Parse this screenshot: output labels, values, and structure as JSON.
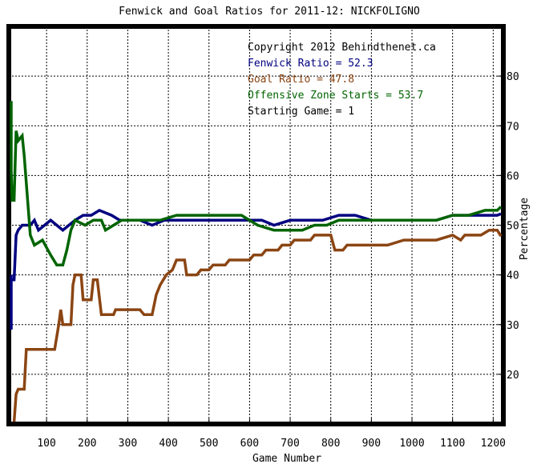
{
  "chart_data": {
    "type": "line",
    "title": "Fenwick and Goal Ratios for 2011-12: NICKFOLIGNO",
    "xlabel": "Game Number",
    "ylabel": "Percentage",
    "xlim": [
      1,
      1225
    ],
    "ylim": [
      10,
      90
    ],
    "x_ticks": [
      100,
      200,
      300,
      400,
      500,
      600,
      700,
      800,
      900,
      1000,
      1100,
      1200
    ],
    "y_ticks": [
      20,
      30,
      40,
      50,
      60,
      70,
      80
    ],
    "y_axis_side": "right",
    "grid": true,
    "grid_style": "dashed",
    "annotations": [
      {
        "text": "Copyright 2012 Behindthenet.ca",
        "color": "#000000"
      },
      {
        "text": "Fenwick Ratio = 52.3",
        "color": "#000080"
      },
      {
        "text": "Goal Ratio = 47.8",
        "color": "#8B4513"
      },
      {
        "text": "Offensive Zone Starts = 53.7",
        "color": "#006400"
      },
      {
        "text": "Starting Game = 1",
        "color": "#000000"
      }
    ],
    "series": [
      {
        "name": "Fenwick Ratio",
        "color": "#000080",
        "points": [
          [
            1,
            29
          ],
          [
            5,
            40
          ],
          [
            10,
            39
          ],
          [
            20,
            39
          ],
          [
            25,
            48
          ],
          [
            30,
            49
          ],
          [
            40,
            50
          ],
          [
            60,
            50
          ],
          [
            70,
            51
          ],
          [
            80,
            49
          ],
          [
            95,
            50
          ],
          [
            110,
            51
          ],
          [
            125,
            50
          ],
          [
            140,
            49
          ],
          [
            155,
            50
          ],
          [
            170,
            51
          ],
          [
            190,
            52
          ],
          [
            210,
            52
          ],
          [
            230,
            53
          ],
          [
            260,
            52
          ],
          [
            280,
            51
          ],
          [
            300,
            51
          ],
          [
            330,
            51
          ],
          [
            360,
            50
          ],
          [
            390,
            51
          ],
          [
            420,
            51
          ],
          [
            450,
            51
          ],
          [
            480,
            51
          ],
          [
            520,
            51
          ],
          [
            560,
            51
          ],
          [
            600,
            51
          ],
          [
            630,
            51
          ],
          [
            660,
            50
          ],
          [
            700,
            51
          ],
          [
            740,
            51
          ],
          [
            780,
            51
          ],
          [
            820,
            52
          ],
          [
            860,
            52
          ],
          [
            900,
            51
          ],
          [
            940,
            51
          ],
          [
            980,
            51
          ],
          [
            1020,
            51
          ],
          [
            1060,
            51
          ],
          [
            1100,
            52
          ],
          [
            1140,
            52
          ],
          [
            1180,
            52
          ],
          [
            1210,
            52
          ],
          [
            1225,
            52.3
          ]
        ]
      },
      {
        "name": "Goal Ratio",
        "color": "#8B4513",
        "points": [
          [
            20,
            10
          ],
          [
            25,
            16
          ],
          [
            30,
            17
          ],
          [
            45,
            17
          ],
          [
            50,
            25
          ],
          [
            90,
            25
          ],
          [
            120,
            25
          ],
          [
            130,
            30
          ],
          [
            135,
            33
          ],
          [
            140,
            30
          ],
          [
            160,
            30
          ],
          [
            165,
            38
          ],
          [
            170,
            40
          ],
          [
            185,
            40
          ],
          [
            190,
            35
          ],
          [
            210,
            35
          ],
          [
            215,
            39
          ],
          [
            225,
            39
          ],
          [
            235,
            32
          ],
          [
            265,
            32
          ],
          [
            270,
            33
          ],
          [
            330,
            33
          ],
          [
            340,
            32
          ],
          [
            360,
            32
          ],
          [
            370,
            36
          ],
          [
            380,
            38
          ],
          [
            395,
            40
          ],
          [
            410,
            41
          ],
          [
            420,
            43
          ],
          [
            440,
            43
          ],
          [
            445,
            40
          ],
          [
            470,
            40
          ],
          [
            480,
            41
          ],
          [
            500,
            41
          ],
          [
            510,
            42
          ],
          [
            540,
            42
          ],
          [
            550,
            43
          ],
          [
            600,
            43
          ],
          [
            610,
            44
          ],
          [
            630,
            44
          ],
          [
            640,
            45
          ],
          [
            670,
            45
          ],
          [
            680,
            46
          ],
          [
            700,
            46
          ],
          [
            710,
            47
          ],
          [
            750,
            47
          ],
          [
            760,
            48
          ],
          [
            800,
            48
          ],
          [
            810,
            45
          ],
          [
            830,
            45
          ],
          [
            840,
            46
          ],
          [
            900,
            46
          ],
          [
            940,
            46
          ],
          [
            980,
            47
          ],
          [
            1020,
            47
          ],
          [
            1060,
            47
          ],
          [
            1100,
            48
          ],
          [
            1120,
            47
          ],
          [
            1130,
            48
          ],
          [
            1170,
            48
          ],
          [
            1190,
            49
          ],
          [
            1210,
            49
          ],
          [
            1225,
            47.8
          ]
        ]
      },
      {
        "name": "Offensive Zone Starts",
        "color": "#006400",
        "points": [
          [
            1,
            75
          ],
          [
            5,
            65
          ],
          [
            10,
            61
          ],
          [
            15,
            55
          ],
          [
            20,
            55
          ],
          [
            25,
            69
          ],
          [
            30,
            67
          ],
          [
            40,
            68
          ],
          [
            45,
            64
          ],
          [
            60,
            48
          ],
          [
            70,
            46
          ],
          [
            90,
            47
          ],
          [
            110,
            44
          ],
          [
            125,
            42
          ],
          [
            140,
            42
          ],
          [
            150,
            45
          ],
          [
            160,
            49
          ],
          [
            170,
            51
          ],
          [
            195,
            50
          ],
          [
            215,
            51
          ],
          [
            235,
            51
          ],
          [
            245,
            49
          ],
          [
            265,
            50
          ],
          [
            285,
            51
          ],
          [
            315,
            51
          ],
          [
            350,
            51
          ],
          [
            380,
            51
          ],
          [
            420,
            52
          ],
          [
            460,
            52
          ],
          [
            500,
            52
          ],
          [
            540,
            52
          ],
          [
            580,
            52
          ],
          [
            620,
            50
          ],
          [
            660,
            49
          ],
          [
            700,
            49
          ],
          [
            730,
            49
          ],
          [
            760,
            50
          ],
          [
            790,
            50
          ],
          [
            820,
            51
          ],
          [
            860,
            51
          ],
          [
            900,
            51
          ],
          [
            940,
            51
          ],
          [
            980,
            51
          ],
          [
            1020,
            51
          ],
          [
            1060,
            51
          ],
          [
            1100,
            52
          ],
          [
            1140,
            52
          ],
          [
            1180,
            53
          ],
          [
            1210,
            53
          ],
          [
            1225,
            53.7
          ]
        ]
      }
    ]
  }
}
